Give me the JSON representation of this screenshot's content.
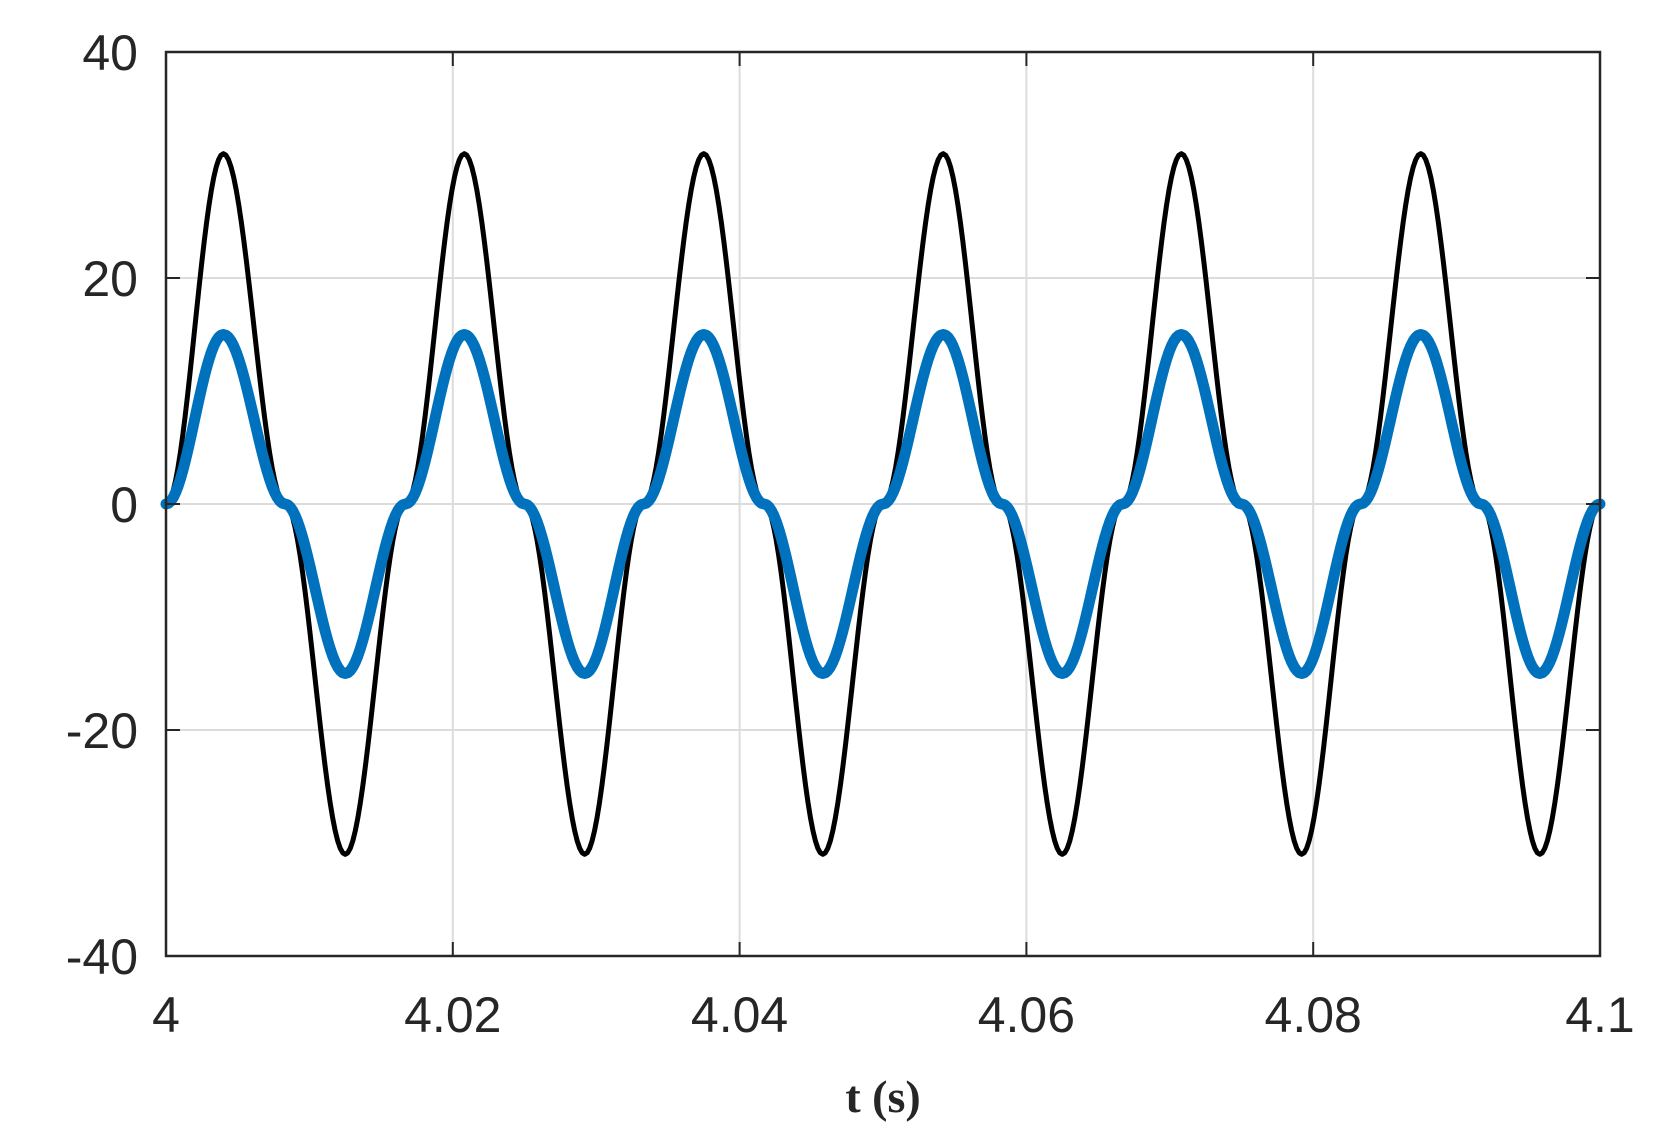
{
  "chart_data": {
    "type": "line",
    "title": "",
    "xlabel": "t (s)",
    "ylabel": "",
    "xlim": [
      4,
      4.1
    ],
    "ylim": [
      -40,
      40
    ],
    "grid": true,
    "legend": "none",
    "x_ticks": [
      {
        "value": 4,
        "label": "4"
      },
      {
        "value": 4.02,
        "label": "4.02"
      },
      {
        "value": 4.04,
        "label": "4.04"
      },
      {
        "value": 4.06,
        "label": "4.06"
      },
      {
        "value": 4.08,
        "label": "4.08"
      },
      {
        "value": 4.1,
        "label": "4.1"
      }
    ],
    "y_ticks": [
      {
        "value": 40,
        "label": "40"
      },
      {
        "value": 20,
        "label": "20"
      },
      {
        "value": 0,
        "label": "0"
      },
      {
        "value": -20,
        "label": "-20"
      },
      {
        "value": -40,
        "label": "-40"
      }
    ],
    "series": [
      {
        "color": "#000000",
        "line_style": "thin",
        "x": [
          4.0,
          4.004,
          4.0083,
          4.0125,
          4.0167,
          4.0208,
          4.025,
          4.0292,
          4.0333,
          4.0375,
          4.0417,
          4.0458,
          4.05,
          4.0542,
          4.0583,
          4.0625,
          4.0667,
          4.0708,
          4.075,
          4.0792,
          4.0833,
          4.0875,
          4.0917,
          4.0958,
          4.1
        ],
        "y": [
          0,
          31,
          0,
          -31,
          0,
          31,
          0,
          -31,
          0,
          31,
          0,
          -31,
          0,
          31,
          0,
          -31,
          0,
          31,
          0,
          -31,
          0,
          31,
          0,
          -31,
          0
        ]
      },
      {
        "color": "#0072BD",
        "line_style": "thick",
        "x": [
          4.0,
          4.004,
          4.0083,
          4.0125,
          4.0167,
          4.0208,
          4.025,
          4.0292,
          4.0333,
          4.0375,
          4.0417,
          4.0458,
          4.05,
          4.0542,
          4.0583,
          4.0625,
          4.0667,
          4.0708,
          4.075,
          4.0792,
          4.0833,
          4.0875,
          4.0917,
          4.0958,
          4.1
        ],
        "y": [
          0,
          15,
          0,
          -15,
          0,
          15,
          0,
          -15,
          0,
          15,
          0,
          -15,
          0,
          15,
          0,
          -15,
          0,
          15,
          0,
          -15,
          0,
          15,
          0,
          -15,
          0
        ]
      }
    ]
  }
}
